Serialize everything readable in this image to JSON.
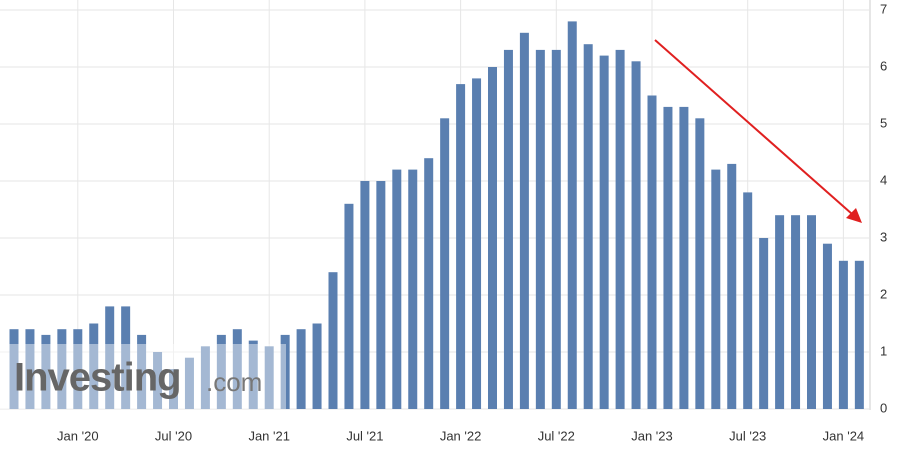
{
  "chart_data": {
    "type": "bar",
    "categories": [
      null,
      null,
      null,
      null,
      "Jan '20",
      null,
      null,
      null,
      null,
      null,
      "Jul '20",
      null,
      null,
      null,
      null,
      null,
      "Jan '21",
      null,
      null,
      null,
      null,
      null,
      "Jul '21",
      null,
      null,
      null,
      null,
      null,
      "Jan '22",
      null,
      null,
      null,
      null,
      null,
      "Jul '22",
      null,
      null,
      null,
      null,
      null,
      "Jan '23",
      null,
      null,
      null,
      null,
      null,
      "Jul '23",
      null,
      null,
      null,
      null,
      null,
      "Jan '24",
      null
    ],
    "values": [
      1.4,
      1.4,
      1.3,
      1.4,
      1.4,
      1.5,
      1.8,
      1.8,
      1.3,
      1.0,
      0.7,
      0.9,
      1.1,
      1.3,
      1.4,
      1.2,
      1.1,
      1.3,
      1.4,
      1.5,
      2.4,
      3.6,
      4.0,
      4.0,
      4.2,
      4.2,
      4.4,
      5.1,
      5.7,
      5.8,
      6.0,
      6.3,
      6.6,
      6.3,
      6.3,
      6.8,
      6.4,
      6.2,
      6.3,
      6.1,
      5.5,
      5.3,
      5.3,
      5.1,
      4.2,
      4.3,
      3.8,
      3.0,
      3.4,
      3.4,
      3.4,
      2.9,
      2.6,
      2.6
    ],
    "color": "#5a7fb0",
    "ylim": [
      0,
      7
    ],
    "yticks": [
      0,
      1,
      2,
      3,
      4,
      5,
      6,
      7
    ],
    "grid": true,
    "watermark": {
      "brand": "Investing",
      "suffix": ".com"
    }
  }
}
